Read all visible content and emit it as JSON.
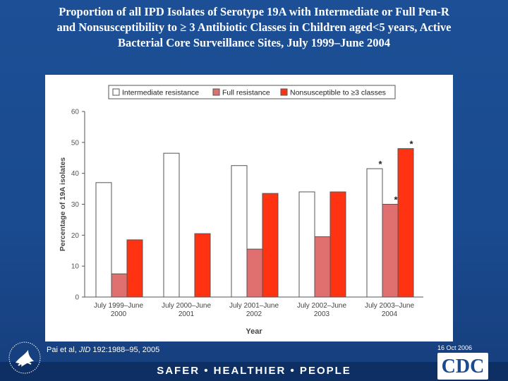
{
  "slide": {
    "title_lines": [
      "Proportion of all IPD Isolates of Serotype 19A with Intermediate or Full Pen-R",
      "and Nonsusceptibility to ≥ 3 Antibiotic Classes in Children aged<5 years, Active",
      "Bacterial Core Surveillance Sites, July 1999–June 2004"
    ],
    "citation_authors": "Pai et al, ",
    "citation_journal": "JID",
    "citation_rest": " 192:1988–95, 2005",
    "date": "16 Oct 2006",
    "tagline": "SAFER • HEALTHIER • PEOPLE",
    "logo_text": "CDC",
    "seal_icon": "hhs-eagle-seal-icon"
  },
  "colors": {
    "intermediate": "#ffffff",
    "full": "#e07070",
    "nonsusceptible": "#ff3311",
    "background": "#1c4f96"
  },
  "chart_data": {
    "type": "bar",
    "categories": [
      [
        "July 1999–June",
        "2000"
      ],
      [
        "July 2000–June",
        "2001"
      ],
      [
        "July 2001–June",
        "2002"
      ],
      [
        "July 2002–June",
        "2003"
      ],
      [
        "July 2003–June",
        "2004"
      ]
    ],
    "series": [
      {
        "name": "Intermediate resistance",
        "values": [
          37,
          46.5,
          42.5,
          34,
          41.5
        ],
        "color": "#ffffff"
      },
      {
        "name": "Full resistance",
        "values": [
          7.5,
          0,
          15.5,
          19.5,
          30
        ],
        "color": "#e07070"
      },
      {
        "name": "Nonsusceptible to ≥3 classes",
        "values": [
          18.5,
          20.5,
          33.5,
          34,
          48
        ],
        "color": "#ff3311"
      }
    ],
    "annotations": [
      {
        "category_index": 4,
        "series_index": 0,
        "text": "*"
      },
      {
        "category_index": 4,
        "series_index": 1,
        "text": "*"
      },
      {
        "category_index": 4,
        "series_index": 2,
        "text": "*"
      }
    ],
    "xlabel": "Year",
    "ylabel": "Percentage of 19A isolates",
    "ylim": [
      0,
      60
    ],
    "yticks": [
      0,
      10,
      20,
      30,
      40,
      50,
      60
    ],
    "grid": false,
    "legend": "top"
  }
}
